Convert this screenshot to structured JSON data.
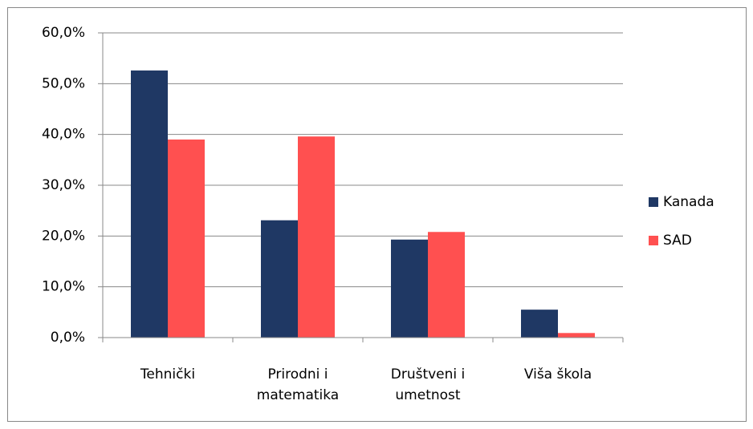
{
  "chart_data": {
    "type": "bar",
    "categories": [
      "Tehnički",
      "Prirodni i\nmatematika",
      "Društveni i\numetnost",
      "Viša škola"
    ],
    "series": [
      {
        "name": "Kanada",
        "color": "#1f3864",
        "values": [
          52.6,
          23.1,
          19.3,
          5.5
        ]
      },
      {
        "name": "SAD",
        "color": "#ff5050",
        "values": [
          39.0,
          39.6,
          20.8,
          0.9
        ]
      }
    ],
    "ylim": [
      0,
      60
    ],
    "yticks": [
      {
        "value": 0,
        "label": "0,0%"
      },
      {
        "value": 10,
        "label": "10,0%"
      },
      {
        "value": 20,
        "label": "20,0%"
      },
      {
        "value": 30,
        "label": "30,0%"
      },
      {
        "value": 40,
        "label": "40,0%"
      },
      {
        "value": 50,
        "label": "50,0%"
      },
      {
        "value": 60,
        "label": "60,0%"
      }
    ],
    "grid": true,
    "legend": "right"
  }
}
